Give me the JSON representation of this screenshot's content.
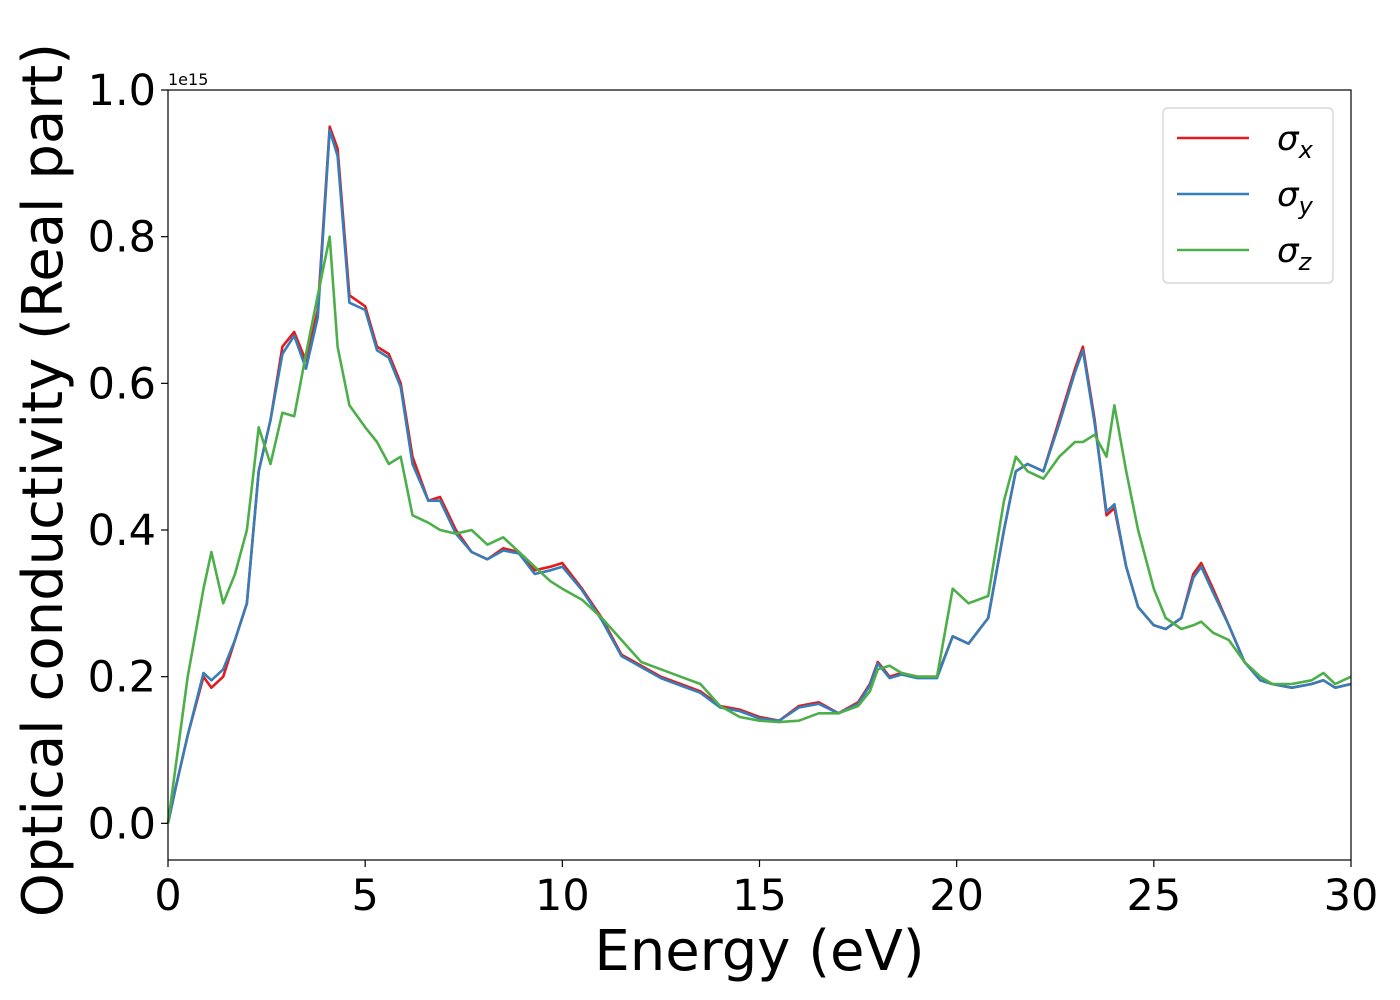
{
  "chart_data": {
    "type": "line",
    "title": "",
    "xlabel": "Energy (eV)",
    "ylabel": "Optical conductivity (Real part)",
    "y_offset_label": "1e15",
    "xlim": [
      0,
      30
    ],
    "ylim": [
      -0.05,
      1.0
    ],
    "xticks": [
      0,
      5,
      10,
      15,
      20,
      25,
      30
    ],
    "yticks": [
      0.0,
      0.2,
      0.4,
      0.6,
      0.8,
      1.0
    ],
    "xtick_labels": [
      "0",
      "5",
      "10",
      "15",
      "20",
      "25",
      "30"
    ],
    "ytick_labels": [
      "0.0",
      "0.2",
      "0.4",
      "0.6",
      "0.8",
      "1.0"
    ],
    "grid": false,
    "legend_position": "top-right",
    "x": [
      0,
      0.2,
      0.5,
      0.9,
      1.1,
      1.4,
      1.7,
      2.0,
      2.3,
      2.6,
      2.9,
      3.2,
      3.5,
      3.8,
      4.1,
      4.3,
      4.6,
      5.0,
      5.3,
      5.6,
      5.9,
      6.2,
      6.6,
      6.9,
      7.3,
      7.7,
      8.1,
      8.5,
      8.9,
      9.3,
      9.7,
      10.0,
      10.5,
      11.0,
      11.5,
      12.0,
      12.5,
      13.0,
      13.5,
      14.0,
      14.5,
      15.0,
      15.5,
      16.0,
      16.5,
      17.0,
      17.5,
      17.8,
      18.0,
      18.3,
      18.6,
      19.0,
      19.5,
      19.9,
      20.3,
      20.8,
      21.2,
      21.5,
      21.8,
      22.2,
      22.6,
      23.0,
      23.2,
      23.5,
      23.8,
      24.0,
      24.3,
      24.6,
      25.0,
      25.3,
      25.7,
      26.0,
      26.2,
      26.5,
      26.9,
      27.3,
      27.7,
      28.0,
      28.5,
      29.0,
      29.3,
      29.6,
      30.0
    ],
    "series": [
      {
        "name": "σx",
        "color": "#e41a1c",
        "values": [
          0.0,
          0.05,
          0.12,
          0.2,
          0.185,
          0.2,
          0.25,
          0.3,
          0.48,
          0.55,
          0.65,
          0.67,
          0.63,
          0.7,
          0.95,
          0.92,
          0.72,
          0.705,
          0.65,
          0.64,
          0.6,
          0.5,
          0.44,
          0.445,
          0.4,
          0.37,
          0.36,
          0.375,
          0.37,
          0.345,
          0.35,
          0.355,
          0.32,
          0.28,
          0.23,
          0.215,
          0.2,
          0.19,
          0.18,
          0.16,
          0.155,
          0.145,
          0.14,
          0.16,
          0.165,
          0.15,
          0.165,
          0.19,
          0.22,
          0.2,
          0.205,
          0.2,
          0.2,
          0.255,
          0.245,
          0.28,
          0.4,
          0.48,
          0.49,
          0.48,
          0.55,
          0.62,
          0.65,
          0.55,
          0.42,
          0.43,
          0.35,
          0.295,
          0.27,
          0.265,
          0.28,
          0.34,
          0.355,
          0.32,
          0.27,
          0.22,
          0.195,
          0.19,
          0.185,
          0.19,
          0.195,
          0.185,
          0.19
        ]
      },
      {
        "name": "σy",
        "color": "#377eb8",
        "values": [
          0.0,
          0.05,
          0.12,
          0.205,
          0.195,
          0.21,
          0.25,
          0.3,
          0.48,
          0.55,
          0.64,
          0.665,
          0.62,
          0.69,
          0.945,
          0.91,
          0.71,
          0.7,
          0.645,
          0.635,
          0.595,
          0.49,
          0.44,
          0.44,
          0.395,
          0.37,
          0.36,
          0.372,
          0.368,
          0.34,
          0.345,
          0.35,
          0.318,
          0.277,
          0.228,
          0.213,
          0.198,
          0.188,
          0.178,
          0.158,
          0.153,
          0.143,
          0.14,
          0.158,
          0.163,
          0.15,
          0.163,
          0.188,
          0.218,
          0.198,
          0.203,
          0.198,
          0.198,
          0.255,
          0.245,
          0.28,
          0.4,
          0.48,
          0.49,
          0.48,
          0.545,
          0.615,
          0.645,
          0.545,
          0.425,
          0.435,
          0.35,
          0.295,
          0.27,
          0.265,
          0.28,
          0.335,
          0.35,
          0.315,
          0.27,
          0.22,
          0.195,
          0.19,
          0.185,
          0.19,
          0.195,
          0.185,
          0.19
        ]
      },
      {
        "name": "σz",
        "color": "#4daf4a",
        "values": [
          0.0,
          0.08,
          0.2,
          0.32,
          0.37,
          0.3,
          0.34,
          0.4,
          0.54,
          0.49,
          0.56,
          0.555,
          0.64,
          0.72,
          0.8,
          0.65,
          0.57,
          0.54,
          0.52,
          0.49,
          0.5,
          0.42,
          0.41,
          0.4,
          0.395,
          0.4,
          0.38,
          0.39,
          0.37,
          0.35,
          0.33,
          0.32,
          0.305,
          0.28,
          0.25,
          0.22,
          0.21,
          0.2,
          0.19,
          0.16,
          0.145,
          0.14,
          0.138,
          0.14,
          0.15,
          0.15,
          0.16,
          0.18,
          0.21,
          0.215,
          0.205,
          0.2,
          0.2,
          0.32,
          0.3,
          0.31,
          0.44,
          0.5,
          0.48,
          0.47,
          0.5,
          0.52,
          0.52,
          0.53,
          0.5,
          0.57,
          0.48,
          0.4,
          0.32,
          0.28,
          0.265,
          0.27,
          0.275,
          0.26,
          0.25,
          0.22,
          0.2,
          0.19,
          0.19,
          0.195,
          0.205,
          0.19,
          0.2
        ]
      }
    ]
  }
}
